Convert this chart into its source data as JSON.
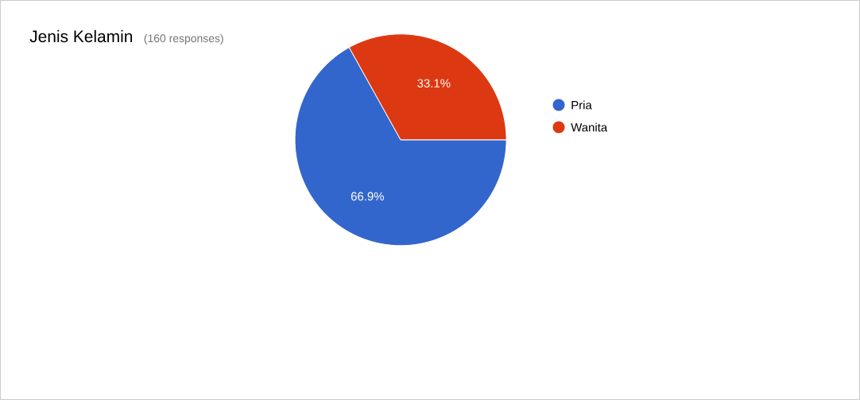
{
  "chart_data": {
    "type": "pie",
    "title": "Jenis Kelamin",
    "subtitle": "(160 responses)",
    "categories": [
      "Pria",
      "Wanita"
    ],
    "values": [
      66.9,
      33.1
    ],
    "colors": [
      "#3366cc",
      "#dc3912"
    ],
    "value_labels": [
      "66.9%",
      "33.1%"
    ],
    "legend": "top right"
  }
}
